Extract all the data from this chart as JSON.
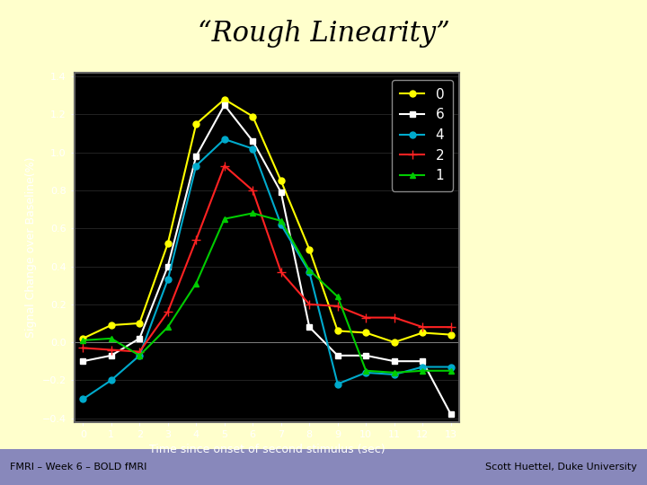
{
  "title": "“Rough Linearity”",
  "xlabel": "Time since onset of second stimulus (sec)",
  "ylabel": "Signal Change over Baseline(%)",
  "footer_left": "FMRI – Week 6 – BOLD fMRI",
  "footer_right": "Scott Huettel, Duke University",
  "background_color": "#ffffcc",
  "plot_bg": "#000000",
  "plot_border": "#666666",
  "x": [
    0,
    1,
    2,
    3,
    4,
    5,
    6,
    7,
    8,
    9,
    10,
    11,
    12,
    13
  ],
  "series": [
    {
      "label": "0",
      "color": "#ffff00",
      "marker": "o",
      "data": [
        0.02,
        0.09,
        0.1,
        0.52,
        1.15,
        1.28,
        1.19,
        0.85,
        0.49,
        0.06,
        0.05,
        0.0,
        0.05,
        0.04
      ]
    },
    {
      "label": "6",
      "color": "#ffffff",
      "marker": "s",
      "data": [
        -0.1,
        -0.07,
        0.02,
        0.4,
        0.98,
        1.25,
        1.06,
        0.79,
        0.08,
        -0.07,
        -0.07,
        -0.1,
        -0.1,
        -0.38
      ]
    },
    {
      "label": "4",
      "color": "#00aacc",
      "marker": "o",
      "data": [
        -0.3,
        -0.2,
        -0.07,
        0.33,
        0.93,
        1.07,
        1.02,
        0.62,
        0.37,
        -0.22,
        -0.16,
        -0.17,
        -0.13,
        -0.13
      ]
    },
    {
      "label": "2",
      "color": "#ff2222",
      "marker": "+",
      "data": [
        -0.03,
        -0.04,
        -0.05,
        0.16,
        0.54,
        0.93,
        0.8,
        0.37,
        0.2,
        0.19,
        0.13,
        0.13,
        0.08,
        0.08
      ]
    },
    {
      "label": "1",
      "color": "#00cc00",
      "marker": "^",
      "data": [
        0.01,
        0.02,
        -0.07,
        0.08,
        0.31,
        0.65,
        0.68,
        0.64,
        0.38,
        0.24,
        -0.15,
        -0.16,
        -0.15,
        -0.15
      ]
    }
  ],
  "xlim": [
    -0.3,
    13.3
  ],
  "ylim": [
    -0.42,
    1.42
  ],
  "yticks": [
    -0.4,
    -0.2,
    0.0,
    0.2,
    0.4,
    0.6,
    0.8,
    1.0,
    1.2,
    1.4
  ],
  "xticks": [
    0,
    1,
    2,
    3,
    4,
    5,
    6,
    7,
    8,
    9,
    10,
    11,
    12,
    13
  ],
  "title_fontsize": 22,
  "axis_label_fontsize": 9,
  "tick_fontsize": 8,
  "legend_fontsize": 11,
  "footer_fontsize": 8
}
